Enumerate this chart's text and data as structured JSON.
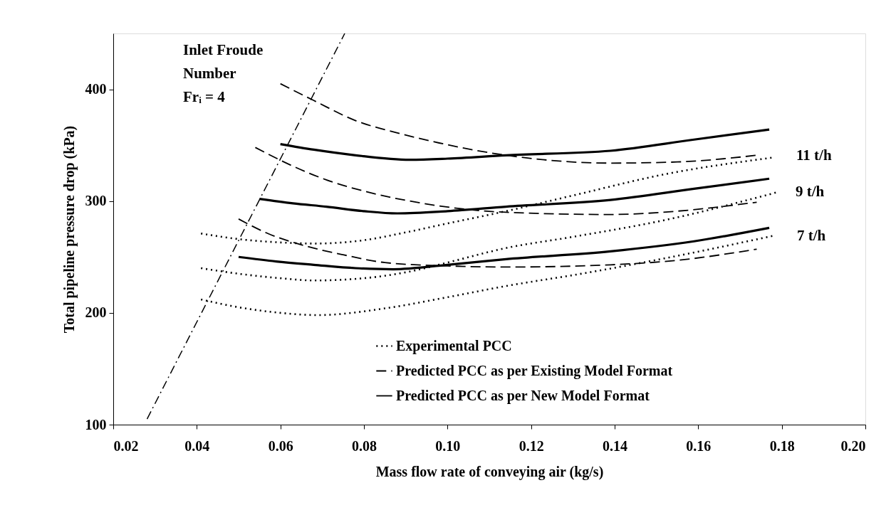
{
  "chart_data": {
    "type": "line",
    "xlabel": "Mass flow rate of conveying air (kg/s)",
    "ylabel": "Total pipeline pressure drop (kPa)",
    "xlim": [
      0.02,
      0.2
    ],
    "xticks": [
      {
        "value": 0.02,
        "label": "0.02"
      },
      {
        "value": 0.04,
        "label": "0.04"
      },
      {
        "value": 0.06,
        "label": "0.06"
      },
      {
        "value": 0.08,
        "label": "0.08"
      },
      {
        "value": 0.1,
        "label": "0.10"
      },
      {
        "value": 0.12,
        "label": "0.12"
      },
      {
        "value": 0.14,
        "label": "0.14"
      },
      {
        "value": 0.16,
        "label": "0.16"
      },
      {
        "value": 0.18,
        "label": "0.18"
      },
      {
        "value": 0.2,
        "label": "0.20"
      }
    ],
    "ylim": [
      100,
      450
    ],
    "yticks": [
      100,
      200,
      300,
      400
    ],
    "grid": false,
    "legend": "bottom right",
    "marker": "none",
    "series": [
      {
        "name": "Experimental PCC",
        "color": "#000000",
        "line_style": "dotted",
        "x": [
          0.041,
          0.05,
          0.06,
          0.068,
          0.08,
          0.09,
          0.1,
          0.114,
          0.13,
          0.152,
          0.178
        ],
        "values": [
          271,
          266,
          263,
          262,
          265,
          272,
          280,
          291,
          305,
          324,
          339
        ]
      },
      {
        "color": "#000000",
        "line_style": "dotted",
        "x": [
          0.041,
          0.05,
          0.06,
          0.068,
          0.08,
          0.091,
          0.1,
          0.114,
          0.13,
          0.152,
          0.179
        ],
        "values": [
          240,
          235,
          231,
          229,
          231,
          237,
          245,
          258,
          268,
          283,
          308
        ]
      },
      {
        "color": "#000000",
        "line_style": "dotted",
        "x": [
          0.041,
          0.05,
          0.06,
          0.069,
          0.085,
          0.1,
          0.114,
          0.132,
          0.155,
          0.178
        ],
        "values": [
          212,
          205,
          200,
          198,
          204,
          214,
          224,
          235,
          251,
          269
        ]
      },
      {
        "name": "Predicted PCC as per Existing Model Format",
        "color": "#000000",
        "line_style": "dashed",
        "x": [
          0.06,
          0.068,
          0.078,
          0.088,
          0.098,
          0.114,
          0.139,
          0.155,
          0.174
        ],
        "values": [
          405,
          390,
          372,
          361,
          352,
          341,
          334,
          335,
          341
        ]
      },
      {
        "color": "#000000",
        "line_style": "dashed",
        "x": [
          0.054,
          0.062,
          0.071,
          0.081,
          0.091,
          0.114,
          0.139,
          0.155,
          0.174
        ],
        "values": [
          348,
          333,
          319,
          308,
          300,
          290,
          288,
          291,
          299
        ]
      },
      {
        "color": "#000000",
        "line_style": "dashed",
        "x": [
          0.05,
          0.057,
          0.064,
          0.075,
          0.085,
          0.1,
          0.114,
          0.139,
          0.155,
          0.174
        ],
        "values": [
          284,
          271,
          262,
          252,
          245,
          242,
          241,
          243,
          247,
          257
        ]
      },
      {
        "name": "Predicted PCC as per New Model Format",
        "color": "#000000",
        "line_style": "solid",
        "x": [
          0.06,
          0.068,
          0.078,
          0.091,
          0.1,
          0.114,
          0.139,
          0.159,
          0.177
        ],
        "values": [
          351,
          346,
          341,
          337,
          338,
          341,
          345,
          355,
          364
        ]
      },
      {
        "color": "#000000",
        "line_style": "solid",
        "x": [
          0.055,
          0.063,
          0.071,
          0.08,
          0.088,
          0.1,
          0.114,
          0.139,
          0.159,
          0.177
        ],
        "values": [
          302,
          298,
          295,
          291,
          289,
          291,
          295,
          301,
          311,
          320
        ]
      },
      {
        "color": "#000000",
        "line_style": "solid",
        "x": [
          0.05,
          0.059,
          0.068,
          0.078,
          0.087,
          0.1,
          0.114,
          0.139,
          0.159,
          0.177
        ],
        "values": [
          250,
          246,
          243,
          240,
          239,
          243,
          248,
          255,
          264,
          276
        ]
      },
      {
        "color": "#000000",
        "line_style": "dashdot",
        "x": [
          0.0281,
          0.0754
        ],
        "values": [
          105,
          450
        ]
      }
    ],
    "annotations": [
      "Inlet Froude\nNumber\nFrᵢ = 4",
      "11 t/h",
      "9 t/h",
      "7 t/h"
    ]
  }
}
